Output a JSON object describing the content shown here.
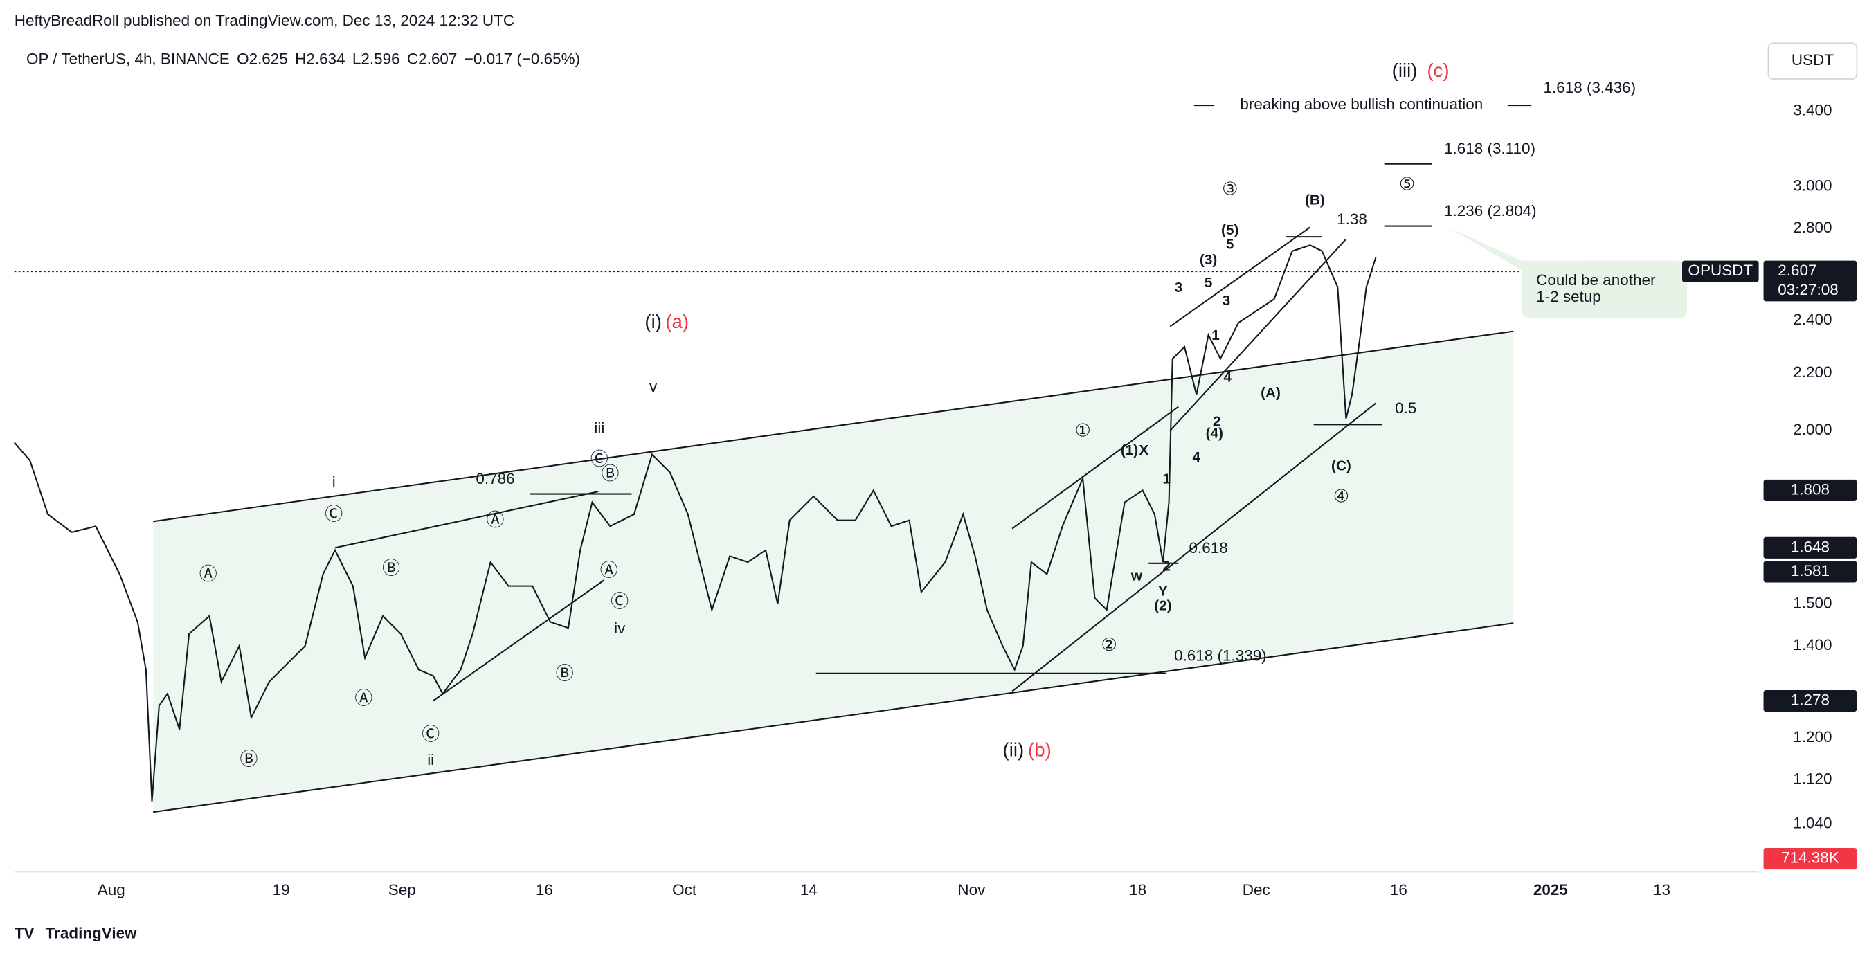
{
  "header": {
    "byline": "HeftyBreadRoll published on TradingView.com, Dec 13, 2024 12:32 UTC"
  },
  "legend": {
    "symbol": "OP / TetherUS, 4h, BINANCE",
    "open": "O2.625",
    "high": "H2.634",
    "low": "L2.596",
    "close": "C2.607",
    "change": "−0.017 (−0.65%)"
  },
  "currency": "USDT",
  "price_axis": [
    "3.400",
    "3.000",
    "2.800",
    "2.400",
    "2.200",
    "2.000",
    "1.500",
    "1.400",
    "1.200",
    "1.120",
    "1.040"
  ],
  "badges": {
    "symbol": "OPUSDT",
    "last": "2.607",
    "countdown": "03:27:08",
    "levels": [
      "1.808",
      "1.648",
      "1.581",
      "1.278"
    ],
    "volume": "714.38K"
  },
  "time_axis": [
    "Aug",
    "19",
    "Sep",
    "16",
    "Oct",
    "14",
    "Nov",
    "18",
    "Dec",
    "16",
    "2025",
    "13"
  ],
  "annotations": [
    "0.786",
    "i",
    "iii",
    "v",
    "iv",
    "ii",
    "(i)",
    "(a)",
    "(ii)",
    "(b)",
    "(iii)",
    "(c)",
    "breaking above bullish continuation",
    "1.618 (3.436)",
    "1.618 (3.110)",
    "1.236 (2.804)",
    "1.38",
    "0.5",
    "0.618",
    "0.618 (1.339)",
    "Could be another",
    "1-2 setup",
    "(A)",
    "(B)",
    "(C)",
    "(1)",
    "X",
    "w",
    "Y",
    "(2)",
    "2",
    "1",
    "4",
    "(4)",
    "2",
    "4",
    "1",
    "3",
    "3",
    "5",
    "(3)",
    "5",
    "(5)",
    "Ⓒ",
    "Ⓐ",
    "Ⓑ",
    "Ⓑ",
    "Ⓐ",
    "Ⓒ",
    "Ⓐ",
    "Ⓑ",
    "Ⓐ",
    "Ⓒ",
    "Ⓒ",
    "Ⓑ",
    "①",
    "②",
    "③",
    "④",
    "⑤"
  ],
  "footer": {
    "brand": "TradingView"
  }
}
